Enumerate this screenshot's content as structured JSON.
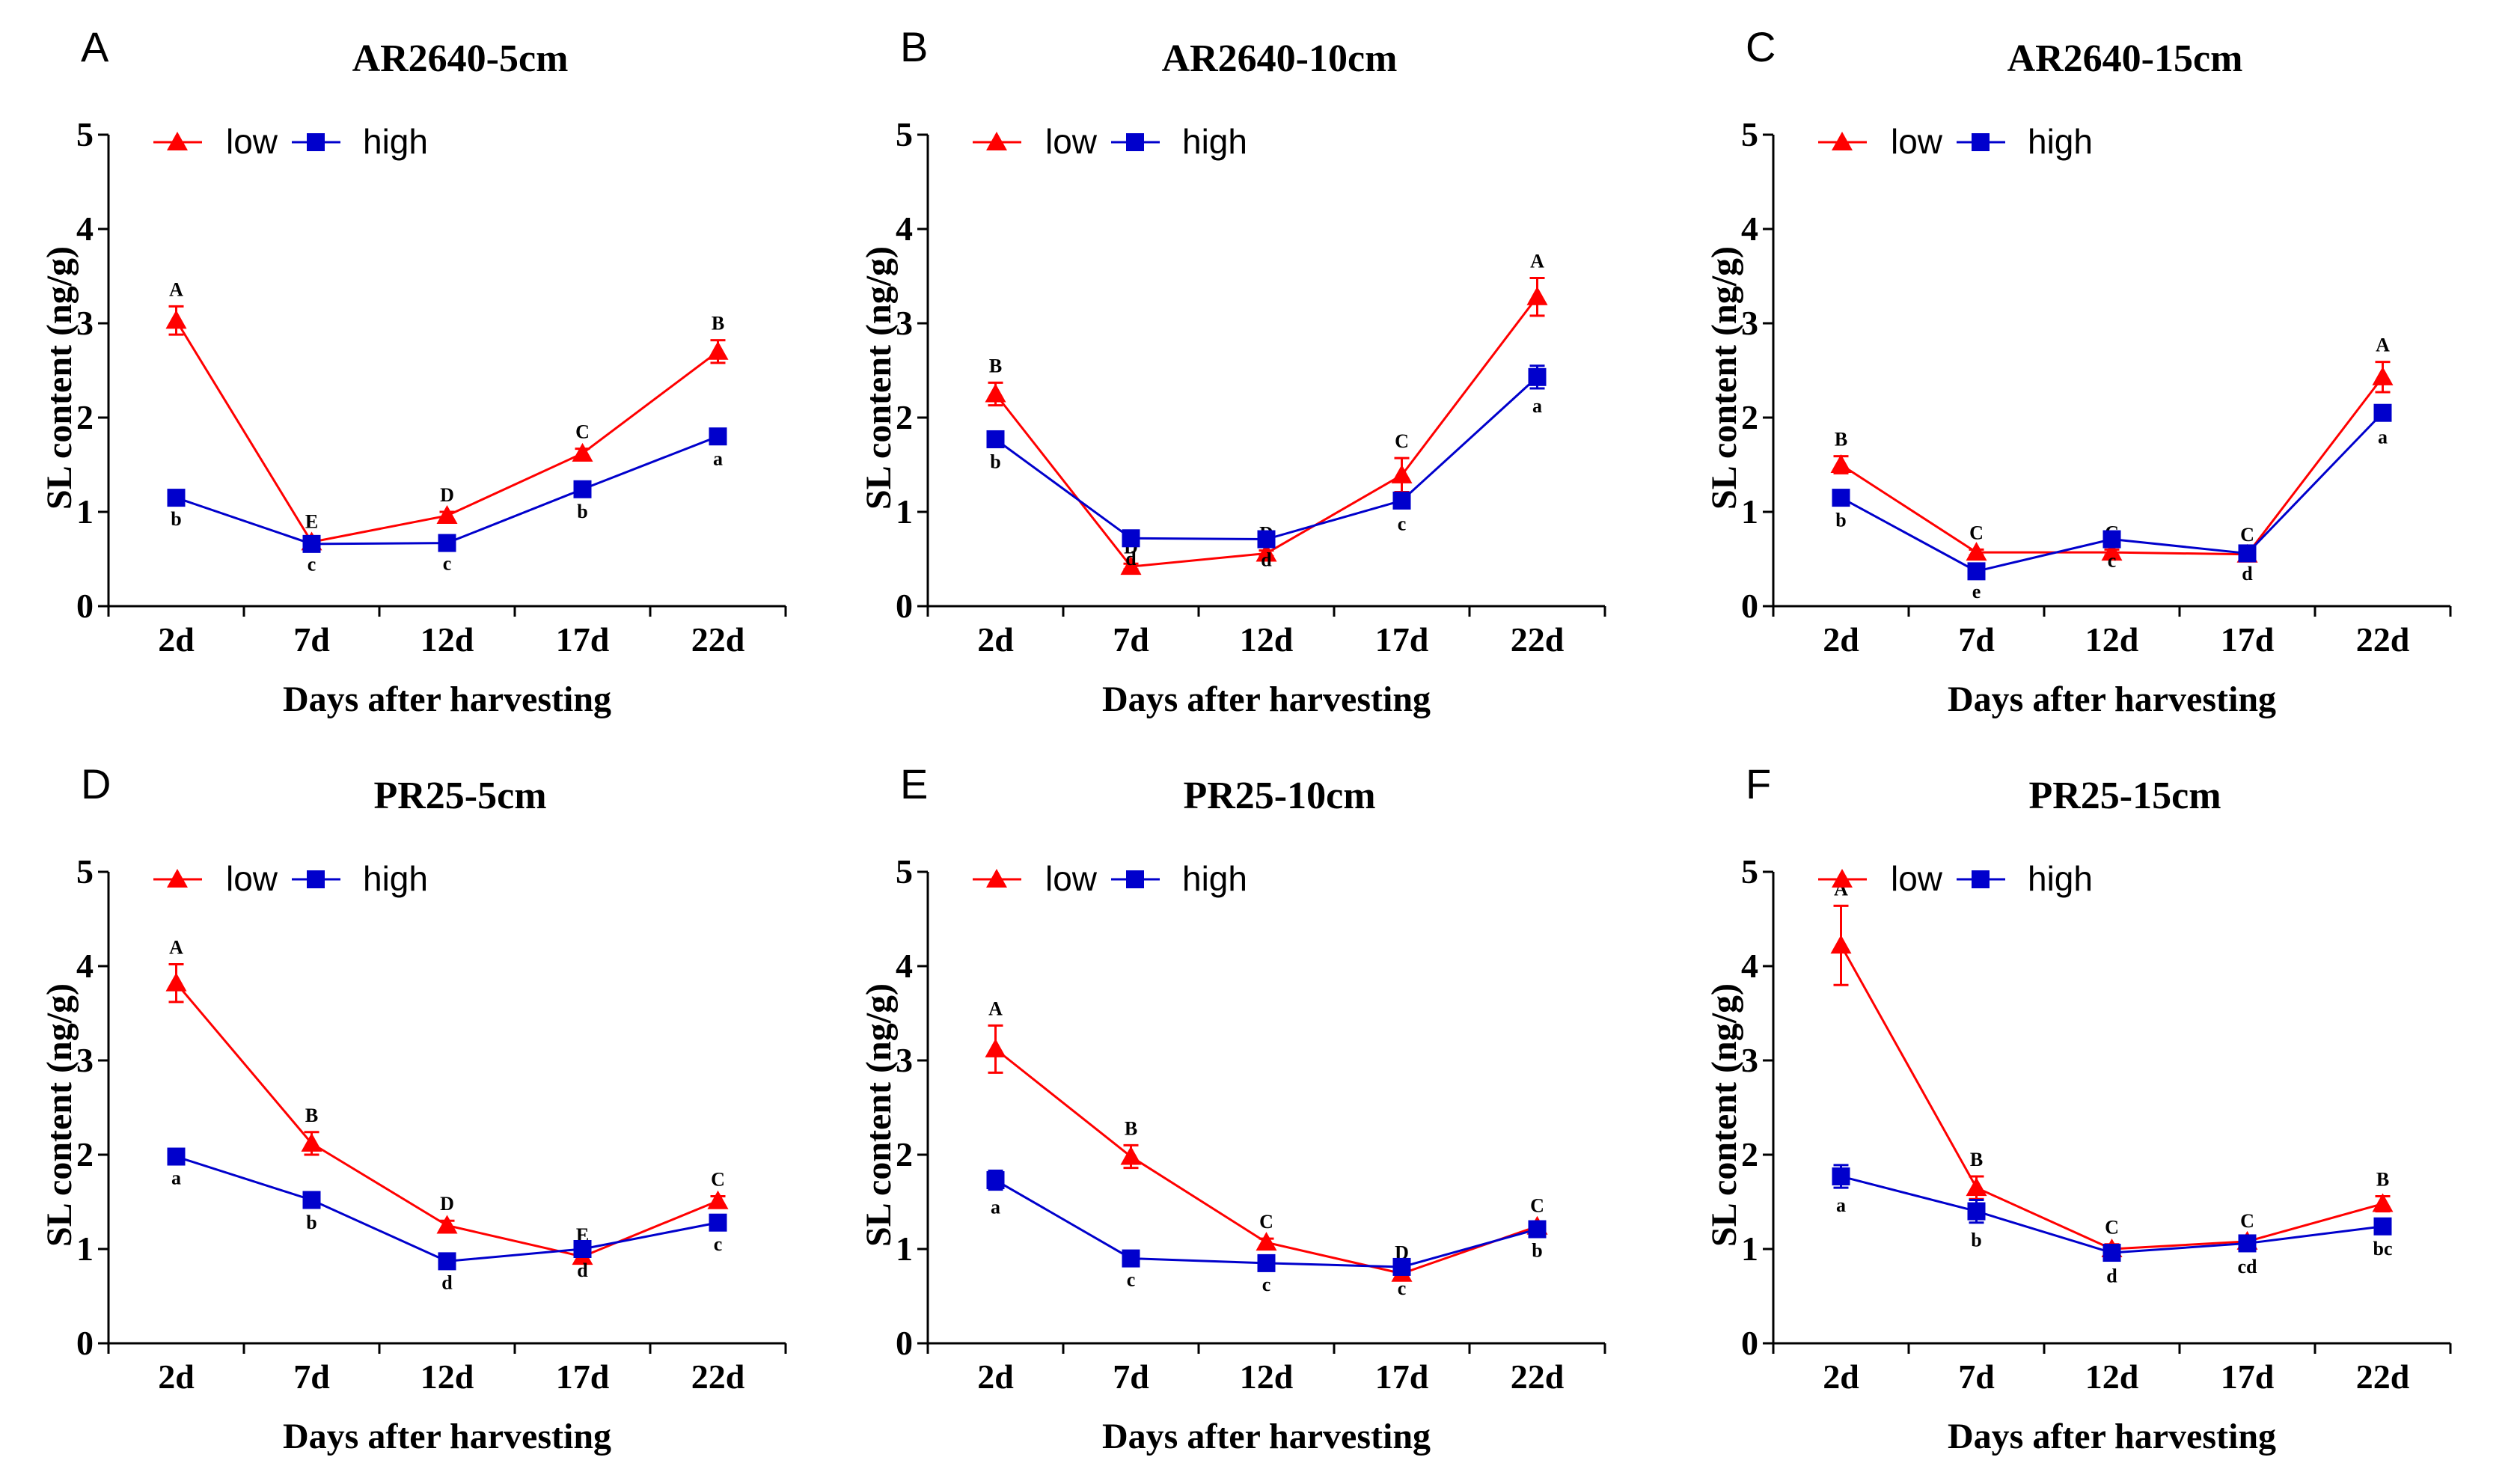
{
  "chart_data": [
    {
      "type": "line",
      "panel_letter": "A",
      "title": "AR2640-5cm",
      "xlabel": "Days after harvesting",
      "ylabel": "SL content (ng/g)",
      "categories": [
        "2d",
        "7d",
        "12d",
        "17d",
        "22d"
      ],
      "yticks": [
        "0",
        "1",
        "2",
        "3",
        "4",
        "5"
      ],
      "ylim": [
        0,
        5
      ],
      "legend_position": "top-left",
      "series": [
        {
          "name": "low",
          "color": "#ff0000",
          "marker": "triangle",
          "values": [
            3.03,
            0.68,
            0.96,
            1.62,
            2.7
          ],
          "errors": [
            0.15,
            0.04,
            0.04,
            0.05,
            0.12
          ],
          "labels": [
            "A",
            "E",
            "D",
            "C",
            "B"
          ]
        },
        {
          "name": "high",
          "color": "#0000cc",
          "marker": "square",
          "values": [
            1.15,
            0.66,
            0.67,
            1.24,
            1.8
          ],
          "errors": [
            0.04,
            0.03,
            0.03,
            0.05,
            0.05
          ],
          "labels": [
            "b",
            "c",
            "c",
            "b",
            "a"
          ]
        }
      ]
    },
    {
      "type": "line",
      "panel_letter": "B",
      "title": "AR2640-10cm",
      "xlabel": "Days after harvesting",
      "ylabel": "SL content (ng/g)",
      "categories": [
        "2d",
        "7d",
        "12d",
        "17d",
        "22d"
      ],
      "yticks": [
        "0",
        "1",
        "2",
        "3",
        "4",
        "5"
      ],
      "ylim": [
        0,
        5
      ],
      "legend_position": "top-left",
      "series": [
        {
          "name": "low",
          "color": "#ff0000",
          "marker": "triangle",
          "values": [
            2.25,
            0.42,
            0.56,
            1.39,
            3.28
          ],
          "errors": [
            0.12,
            0.03,
            0.03,
            0.18,
            0.2
          ],
          "labels": [
            "B",
            "D",
            "D",
            "C",
            "A"
          ]
        },
        {
          "name": "high",
          "color": "#0000cc",
          "marker": "square",
          "values": [
            1.77,
            0.72,
            0.71,
            1.12,
            2.43
          ],
          "errors": [
            0.05,
            0.03,
            0.03,
            0.06,
            0.12
          ],
          "labels": [
            "b",
            "d",
            "d",
            "c",
            "a"
          ]
        }
      ]
    },
    {
      "type": "line",
      "panel_letter": "C",
      "title": "AR2640-15cm",
      "xlabel": "Days after harvesting",
      "ylabel": "SL content (ng/g)",
      "categories": [
        "2d",
        "7d",
        "12d",
        "17d",
        "22d"
      ],
      "yticks": [
        "0",
        "1",
        "2",
        "3",
        "4",
        "5"
      ],
      "ylim": [
        0,
        5
      ],
      "legend_position": "top-left",
      "series": [
        {
          "name": "low",
          "color": "#ff0000",
          "marker": "triangle",
          "values": [
            1.5,
            0.57,
            0.57,
            0.55,
            2.43
          ],
          "errors": [
            0.09,
            0.03,
            0.03,
            0.03,
            0.16
          ],
          "labels": [
            "B",
            "C",
            "C",
            "C",
            "A"
          ]
        },
        {
          "name": "high",
          "color": "#0000cc",
          "marker": "square",
          "values": [
            1.15,
            0.37,
            0.71,
            0.56,
            2.05
          ],
          "errors": [
            0.05,
            0.03,
            0.04,
            0.03,
            0.07
          ],
          "labels": [
            "b",
            "e",
            "c",
            "d",
            "a"
          ]
        }
      ]
    },
    {
      "type": "line",
      "panel_letter": "D",
      "title": "PR25-5cm",
      "xlabel": "Days after harvesting",
      "ylabel": "SL content (ng/g)",
      "categories": [
        "2d",
        "7d",
        "12d",
        "17d",
        "22d"
      ],
      "yticks": [
        "0",
        "1",
        "2",
        "3",
        "4",
        "5"
      ],
      "ylim": [
        0,
        5
      ],
      "legend_position": "top-left",
      "series": [
        {
          "name": "low",
          "color": "#ff0000",
          "marker": "triangle",
          "values": [
            3.82,
            2.12,
            1.25,
            0.92,
            1.51
          ],
          "errors": [
            0.2,
            0.12,
            0.05,
            0.05,
            0.05
          ],
          "labels": [
            "A",
            "B",
            "D",
            "E",
            "C"
          ]
        },
        {
          "name": "high",
          "color": "#0000cc",
          "marker": "square",
          "values": [
            1.98,
            1.52,
            0.87,
            1.0,
            1.28
          ],
          "errors": [
            0.04,
            0.05,
            0.04,
            0.04,
            0.04
          ],
          "labels": [
            "a",
            "b",
            "d",
            "d",
            "c"
          ]
        }
      ]
    },
    {
      "type": "line",
      "panel_letter": "E",
      "title": "PR25-10cm",
      "xlabel": "Days after harvesting",
      "ylabel": "SL content (ng/g)",
      "categories": [
        "2d",
        "7d",
        "12d",
        "17d",
        "22d"
      ],
      "yticks": [
        "0",
        "1",
        "2",
        "3",
        "4",
        "5"
      ],
      "ylim": [
        0,
        5
      ],
      "legend_position": "top-left",
      "series": [
        {
          "name": "low",
          "color": "#ff0000",
          "marker": "triangle",
          "values": [
            3.12,
            1.98,
            1.07,
            0.74,
            1.24
          ],
          "errors": [
            0.25,
            0.12,
            0.04,
            0.04,
            0.04
          ],
          "labels": [
            "A",
            "B",
            "C",
            "D",
            "C"
          ]
        },
        {
          "name": "high",
          "color": "#0000cc",
          "marker": "square",
          "values": [
            1.73,
            0.9,
            0.85,
            0.81,
            1.21
          ],
          "errors": [
            0.1,
            0.04,
            0.04,
            0.04,
            0.04
          ],
          "labels": [
            "a",
            "c",
            "c",
            "c",
            "b"
          ]
        }
      ]
    },
    {
      "type": "line",
      "panel_letter": "F",
      "title": "PR25-15cm",
      "xlabel": "Days after harvesting",
      "ylabel": "SL content (ng/g)",
      "categories": [
        "2d",
        "7d",
        "12d",
        "17d",
        "22d"
      ],
      "yticks": [
        "0",
        "1",
        "2",
        "3",
        "4",
        "5"
      ],
      "ylim": [
        0,
        5
      ],
      "legend_position": "top-left",
      "series": [
        {
          "name": "low",
          "color": "#ff0000",
          "marker": "triangle",
          "values": [
            4.22,
            1.65,
            1.0,
            1.08,
            1.48
          ],
          "errors": [
            0.42,
            0.12,
            0.05,
            0.04,
            0.08
          ],
          "labels": [
            "A",
            "B",
            "C",
            "C",
            "B"
          ]
        },
        {
          "name": "high",
          "color": "#0000cc",
          "marker": "square",
          "values": [
            1.77,
            1.4,
            0.96,
            1.06,
            1.24
          ],
          "errors": [
            0.12,
            0.12,
            0.06,
            0.06,
            0.05
          ],
          "labels": [
            "a",
            "b",
            "d",
            "cd",
            "bc"
          ]
        }
      ]
    }
  ]
}
